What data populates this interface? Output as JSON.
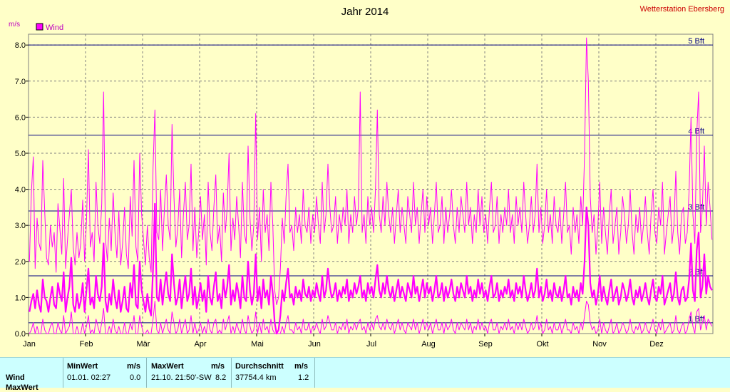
{
  "header": {
    "title": "Jahr 2014",
    "station": "Wetterstation Ebersberg",
    "unit": "m/s"
  },
  "chart_data": {
    "type": "line",
    "title": "Jahr 2014",
    "ylabel": "m/s",
    "xlabel": "",
    "ylim": [
      0,
      8.3
    ],
    "yticks": [
      "0.0",
      "1.0",
      "2.0",
      "3.0",
      "4.0",
      "5.0",
      "6.0",
      "7.0",
      "8.0"
    ],
    "months": [
      "Jan",
      "Feb",
      "Mär",
      "Apr",
      "Mai",
      "Jun",
      "Jul",
      "Aug",
      "Sep",
      "Okt",
      "Nov",
      "Dez"
    ],
    "grid": true,
    "legend": {
      "position": "top-left",
      "entries": [
        "Wind"
      ]
    },
    "colors": {
      "series": "#FF00FF",
      "reference": "#000080",
      "grid": "#808080",
      "background": "#FFFFC8",
      "title_station": "#CC0000"
    },
    "beaufort_lines": [
      {
        "label": "1 Bft",
        "value": 0.3
      },
      {
        "label": "2 Bft",
        "value": 1.6
      },
      {
        "label": "3 Bft",
        "value": 3.4
      },
      {
        "label": "4 Bft",
        "value": 5.5
      },
      {
        "label": "5 Bft",
        "value": 8.0
      }
    ],
    "series": [
      {
        "name": "Wind",
        "style": "average-thick",
        "values": [
          0.6,
          0.9,
          1.1,
          0.7,
          1.2,
          0.8,
          0.6,
          1.5,
          1.0,
          0.9,
          0.6,
          1.0,
          1.3,
          0.8,
          0.7,
          1.4,
          1.1,
          0.9,
          1.7,
          0.6,
          1.0,
          1.3,
          2.1,
          0.8,
          0.6,
          1.1,
          0.7,
          0.9,
          1.4,
          0.6,
          1.2,
          1.8,
          0.8,
          1.0,
          0.7,
          1.6,
          1.1,
          0.9,
          1.3,
          2.5,
          0.9,
          0.6,
          1.1,
          0.8,
          1.5,
          1.0,
          0.7,
          1.2,
          0.6,
          0.9,
          1.3,
          0.7,
          0.6,
          1.4,
          1.0,
          1.9,
          0.8,
          0.7,
          2.0,
          1.2,
          0.9,
          0.6,
          1.1,
          0.7,
          0.5,
          1.8,
          3.6,
          1.0,
          0.9,
          1.5,
          0.8,
          1.3,
          1.7,
          1.1,
          0.9,
          2.2,
          1.4,
          0.8,
          1.0,
          1.5,
          0.7,
          1.2,
          1.6,
          0.9,
          1.1,
          1.8,
          0.8,
          1.3,
          0.7,
          1.0,
          1.4,
          0.9,
          1.2,
          0.6,
          1.6,
          1.0,
          0.8,
          1.3,
          1.7,
          0.9,
          1.1,
          0.7,
          1.5,
          1.0,
          1.3,
          1.9,
          0.8,
          1.2,
          0.9,
          1.4,
          1.1,
          0.7,
          1.6,
          1.0,
          0.9,
          2.0,
          1.2,
          0.8,
          1.1,
          2.2,
          0.9,
          1.3,
          0.7,
          1.5,
          1.0,
          1.2,
          0.8,
          1.6,
          1.1,
          0.3,
          0.0,
          0.1,
          0.5,
          1.2,
          0.9,
          1.4,
          1.8,
          1.0,
          1.1,
          0.8,
          1.3,
          1.0,
          1.2,
          0.9,
          1.5,
          1.1,
          1.0,
          1.3,
          0.9,
          1.2,
          1.0,
          1.4,
          1.1,
          0.9,
          1.6,
          1.0,
          1.2,
          1.8,
          1.3,
          1.0,
          1.1,
          1.4,
          0.9,
          1.2,
          1.0,
          1.3,
          1.1,
          1.5,
          0.9,
          1.2,
          1.0,
          1.4,
          1.1,
          1.3,
          1.6,
          1.0,
          1.2,
          0.9,
          1.4,
          1.1,
          1.3,
          1.0,
          1.5,
          1.9,
          1.2,
          1.0,
          1.4,
          1.1,
          1.6,
          1.2,
          1.0,
          1.3,
          0.9,
          1.2,
          1.5,
          1.0,
          1.3,
          1.1,
          0.9,
          1.4,
          1.2,
          1.0,
          1.6,
          1.1,
          1.3,
          0.9,
          1.2,
          1.5,
          1.0,
          1.4,
          1.1,
          1.3,
          0.9,
          1.2,
          1.6,
          1.0,
          1.1,
          1.4,
          0.9,
          1.3,
          1.0,
          1.2,
          1.5,
          1.1,
          0.9,
          1.3,
          1.0,
          1.4,
          1.2,
          1.0,
          1.6,
          1.1,
          1.3,
          0.9,
          1.2,
          1.0,
          1.5,
          1.1,
          1.4,
          1.0,
          1.2,
          0.9,
          1.3,
          1.6,
          1.0,
          1.1,
          1.4,
          0.9,
          1.2,
          1.0,
          1.3,
          1.1,
          1.5,
          1.0,
          1.2,
          0.9,
          1.4,
          1.1,
          1.3,
          1.0,
          1.6,
          1.2,
          0.9,
          1.1,
          1.4,
          1.0,
          1.2,
          1.8,
          1.0,
          1.3,
          0.9,
          1.1,
          1.5,
          1.0,
          1.2,
          0.9,
          1.4,
          1.1,
          1.0,
          1.3,
          0.9,
          1.2,
          1.6,
          1.0,
          1.1,
          0.8,
          1.3,
          1.0,
          1.2,
          0.9,
          1.4,
          1.1,
          2.0,
          3.5,
          3.0,
          1.4,
          1.0,
          1.2,
          0.8,
          1.1,
          1.6,
          0.9,
          1.3,
          1.0,
          0.8,
          1.2,
          1.5,
          0.9,
          1.1,
          1.3,
          0.8,
          1.0,
          1.4,
          1.2,
          0.9,
          1.1,
          1.5,
          1.0,
          0.8,
          1.2,
          1.0,
          1.3,
          0.9,
          1.1,
          1.4,
          1.0,
          0.8,
          1.2,
          1.5,
          1.0,
          0.9,
          1.3,
          1.1,
          1.6,
          0.8,
          1.0,
          1.2,
          1.4,
          0.9,
          1.1,
          1.7,
          1.0,
          0.8,
          1.2,
          1.3,
          0.9,
          1.0,
          1.5,
          2.5,
          1.2,
          0.9,
          2.3,
          2.8,
          1.0,
          1.3,
          2.2,
          1.1,
          1.6,
          1.3,
          1.2
        ],
        "note": ""
      },
      {
        "name": "",
        "style": "max-thin",
        "values": [
          2.0,
          3.9,
          4.9,
          1.8,
          3.2,
          2.5,
          2.3,
          4.8,
          3.4,
          2.1,
          1.9,
          3.0,
          2.4,
          2.8,
          1.7,
          3.6,
          2.9,
          2.2,
          4.3,
          1.8,
          2.6,
          3.3,
          4.0,
          2.4,
          1.9,
          2.8,
          2.1,
          2.5,
          3.7,
          2.0,
          3.1,
          5.1,
          2.4,
          2.8,
          2.0,
          4.2,
          3.0,
          2.5,
          3.6,
          6.7,
          2.6,
          2.0,
          3.2,
          2.3,
          3.9,
          2.8,
          2.1,
          3.4,
          1.9,
          2.5,
          3.5,
          2.2,
          1.8,
          3.8,
          2.7,
          4.8,
          2.4,
          2.0,
          5.0,
          3.3,
          2.6,
          1.9,
          3.0,
          2.1,
          1.7,
          4.6,
          6.2,
          2.8,
          2.6,
          4.0,
          2.3,
          3.5,
          4.4,
          3.0,
          2.6,
          5.8,
          3.8,
          2.4,
          2.9,
          4.0,
          2.1,
          3.3,
          4.2,
          2.6,
          3.0,
          4.7,
          2.3,
          3.5,
          2.1,
          2.8,
          3.8,
          2.6,
          3.3,
          1.9,
          4.2,
          2.8,
          2.3,
          3.5,
          4.4,
          2.5,
          3.0,
          2.0,
          3.9,
          2.8,
          3.5,
          5.0,
          2.3,
          3.2,
          2.6,
          3.8,
          3.0,
          2.1,
          4.2,
          2.8,
          2.5,
          5.2,
          3.2,
          2.3,
          3.0,
          6.1,
          2.6,
          3.5,
          2.0,
          4.0,
          2.8,
          3.3,
          2.3,
          4.2,
          3.0,
          1.2,
          0.8,
          1.0,
          1.8,
          3.2,
          2.5,
          3.8,
          4.7,
          2.8,
          3.0,
          2.3,
          3.5,
          2.8,
          3.3,
          2.5,
          4.0,
          3.0,
          2.8,
          3.5,
          2.5,
          3.3,
          2.8,
          3.8,
          3.0,
          2.5,
          4.2,
          2.8,
          3.3,
          4.7,
          3.5,
          2.8,
          3.0,
          3.8,
          2.5,
          3.3,
          2.8,
          3.5,
          3.0,
          4.0,
          2.5,
          3.3,
          2.8,
          3.8,
          3.0,
          3.5,
          6.7,
          2.8,
          3.3,
          2.5,
          3.8,
          3.0,
          3.5,
          2.8,
          4.0,
          6.2,
          3.3,
          2.8,
          3.8,
          3.0,
          4.2,
          3.3,
          2.8,
          3.5,
          2.5,
          3.3,
          4.0,
          2.8,
          3.5,
          3.0,
          2.5,
          3.8,
          3.3,
          2.8,
          4.2,
          3.0,
          3.5,
          2.5,
          3.3,
          4.0,
          2.8,
          3.8,
          3.0,
          3.5,
          2.5,
          3.3,
          4.2,
          2.8,
          3.0,
          3.8,
          2.5,
          3.5,
          2.8,
          3.3,
          4.0,
          3.0,
          2.5,
          3.5,
          2.8,
          3.8,
          3.3,
          2.8,
          4.2,
          3.0,
          3.5,
          2.5,
          3.3,
          2.8,
          4.0,
          3.0,
          3.8,
          2.8,
          3.3,
          2.5,
          3.5,
          4.2,
          2.8,
          3.0,
          3.8,
          2.5,
          3.3,
          2.8,
          3.5,
          3.0,
          4.0,
          2.8,
          3.3,
          2.5,
          3.8,
          3.0,
          3.5,
          2.8,
          4.2,
          3.3,
          2.5,
          3.0,
          3.8,
          2.8,
          3.3,
          4.7,
          2.8,
          3.5,
          2.5,
          3.0,
          4.0,
          2.8,
          3.3,
          2.5,
          3.8,
          3.0,
          2.8,
          3.5,
          2.5,
          3.3,
          4.2,
          2.8,
          3.0,
          2.2,
          3.5,
          2.8,
          3.3,
          2.5,
          3.8,
          3.0,
          5.0,
          8.2,
          7.0,
          3.8,
          2.8,
          3.3,
          2.2,
          3.0,
          4.2,
          2.5,
          3.5,
          2.8,
          2.2,
          3.3,
          4.0,
          2.5,
          3.0,
          3.5,
          2.2,
          2.8,
          3.8,
          3.3,
          2.5,
          3.0,
          4.0,
          2.8,
          2.2,
          3.3,
          2.8,
          3.5,
          2.5,
          3.0,
          3.8,
          2.8,
          2.2,
          3.3,
          4.0,
          2.8,
          2.5,
          3.5,
          3.0,
          4.2,
          2.2,
          2.8,
          3.3,
          3.8,
          2.5,
          3.0,
          4.5,
          2.8,
          2.2,
          3.3,
          3.5,
          2.5,
          2.8,
          4.0,
          6.0,
          3.3,
          2.5,
          5.5,
          6.7,
          2.8,
          3.5,
          5.2,
          3.0,
          4.2,
          3.5,
          2.6
        ],
        "note": ""
      },
      {
        "name": "",
        "style": "min-thin",
        "values": [
          0.0,
          0.1,
          0.3,
          0.0,
          0.2,
          0.0,
          0.0,
          0.4,
          0.1,
          0.0,
          0.0,
          0.2,
          0.3,
          0.0,
          0.0,
          0.3,
          0.1,
          0.0,
          0.5,
          0.0,
          0.1,
          0.2,
          0.6,
          0.0,
          0.0,
          0.2,
          0.0,
          0.0,
          0.3,
          0.0,
          0.2,
          0.5,
          0.0,
          0.1,
          0.0,
          0.4,
          0.2,
          0.0,
          0.3,
          0.7,
          0.0,
          0.0,
          0.2,
          0.0,
          0.4,
          0.1,
          0.0,
          0.2,
          0.0,
          0.0,
          0.3,
          0.0,
          0.0,
          0.3,
          0.1,
          0.5,
          0.0,
          0.0,
          0.5,
          0.2,
          0.0,
          0.0,
          0.1,
          0.0,
          0.0,
          0.4,
          0.9,
          0.1,
          0.0,
          0.3,
          0.0,
          0.2,
          0.4,
          0.1,
          0.0,
          0.6,
          0.3,
          0.0,
          0.1,
          0.4,
          0.0,
          0.2,
          0.4,
          0.0,
          0.1,
          0.5,
          0.0,
          0.3,
          0.0,
          0.1,
          0.3,
          0.0,
          0.2,
          0.0,
          0.4,
          0.1,
          0.0,
          0.3,
          0.4,
          0.0,
          0.1,
          0.0,
          0.4,
          0.1,
          0.3,
          0.5,
          0.0,
          0.2,
          0.0,
          0.3,
          0.1,
          0.0,
          0.4,
          0.1,
          0.0,
          0.5,
          0.2,
          0.0,
          0.1,
          0.6,
          0.0,
          0.3,
          0.0,
          0.4,
          0.1,
          0.2,
          0.0,
          0.4,
          0.1,
          0.0,
          0.0,
          0.0,
          0.0,
          0.2,
          0.0,
          0.3,
          0.5,
          0.1,
          0.1,
          0.0,
          0.3,
          0.1,
          0.2,
          0.0,
          0.4,
          0.1,
          0.1,
          0.3,
          0.0,
          0.2,
          0.1,
          0.3,
          0.1,
          0.0,
          0.4,
          0.1,
          0.2,
          0.5,
          0.3,
          0.1,
          0.1,
          0.3,
          0.0,
          0.2,
          0.1,
          0.3,
          0.1,
          0.4,
          0.0,
          0.2,
          0.1,
          0.3,
          0.1,
          0.3,
          0.4,
          0.1,
          0.2,
          0.0,
          0.3,
          0.1,
          0.3,
          0.1,
          0.4,
          0.5,
          0.2,
          0.1,
          0.3,
          0.1,
          0.4,
          0.2,
          0.1,
          0.3,
          0.0,
          0.2,
          0.4,
          0.1,
          0.3,
          0.1,
          0.0,
          0.3,
          0.2,
          0.1,
          0.4,
          0.1,
          0.3,
          0.0,
          0.2,
          0.4,
          0.1,
          0.3,
          0.1,
          0.3,
          0.0,
          0.2,
          0.4,
          0.1,
          0.1,
          0.3,
          0.0,
          0.3,
          0.1,
          0.2,
          0.4,
          0.1,
          0.0,
          0.3,
          0.1,
          0.3,
          0.2,
          0.1,
          0.4,
          0.1,
          0.3,
          0.0,
          0.2,
          0.1,
          0.4,
          0.1,
          0.3,
          0.1,
          0.2,
          0.0,
          0.3,
          0.4,
          0.1,
          0.1,
          0.3,
          0.0,
          0.2,
          0.1,
          0.3,
          0.1,
          0.4,
          0.1,
          0.2,
          0.0,
          0.3,
          0.1,
          0.3,
          0.1,
          0.4,
          0.2,
          0.0,
          0.1,
          0.3,
          0.1,
          0.2,
          0.5,
          0.1,
          0.3,
          0.0,
          0.1,
          0.4,
          0.1,
          0.2,
          0.0,
          0.3,
          0.1,
          0.1,
          0.3,
          0.0,
          0.2,
          0.4,
          0.1,
          0.1,
          0.0,
          0.3,
          0.1,
          0.2,
          0.0,
          0.3,
          0.1,
          0.5,
          0.9,
          0.8,
          0.3,
          0.1,
          0.2,
          0.0,
          0.1,
          0.4,
          0.0,
          0.3,
          0.1,
          0.0,
          0.2,
          0.4,
          0.0,
          0.1,
          0.3,
          0.0,
          0.1,
          0.3,
          0.2,
          0.0,
          0.1,
          0.4,
          0.1,
          0.0,
          0.2,
          0.1,
          0.3,
          0.0,
          0.1,
          0.3,
          0.1,
          0.0,
          0.2,
          0.4,
          0.1,
          0.0,
          0.3,
          0.1,
          0.4,
          0.0,
          0.1,
          0.2,
          0.3,
          0.0,
          0.1,
          0.5,
          0.1,
          0.0,
          0.2,
          0.3,
          0.0,
          0.1,
          0.4,
          0.6,
          0.2,
          0.0,
          0.6,
          0.7,
          0.1,
          0.3,
          0.5,
          0.1,
          0.4,
          0.3,
          0.2
        ],
        "note": ""
      }
    ]
  },
  "stats_table": {
    "columns": {
      "min_label": "MinWert",
      "min_unit": "m/s",
      "max_label": "MaxWert",
      "max_unit": "m/s",
      "avg_label": "Durchschnitt",
      "avg_unit": "m/s"
    },
    "rows": [
      {
        "name": "Wind",
        "min_date": "01.01.  02:27",
        "min_value": "0.0",
        "max_date": "21.10.  21:50'-SW",
        "max_value": "8.2",
        "avg_extra": "37754.4 km",
        "avg_value": "1.2"
      },
      {
        "name": "MaxWert",
        "min_date": "",
        "min_value": "",
        "max_date": "",
        "max_value": "",
        "avg_extra": "",
        "avg_value": ""
      }
    ]
  }
}
